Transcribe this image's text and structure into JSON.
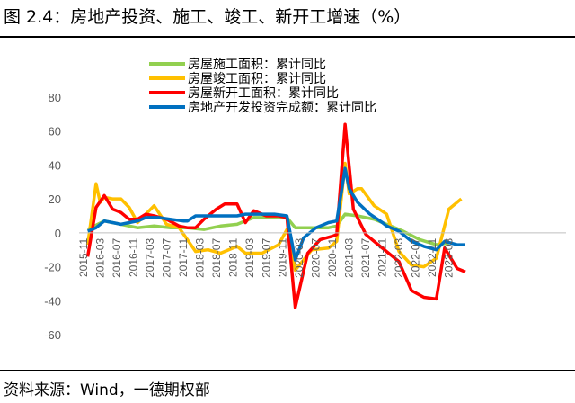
{
  "header": {
    "title": "图 2.4：房地产投资、施工、竣工、新开工增速（%）"
  },
  "footer": {
    "source": "资料来源：Wind，一德期权部"
  },
  "chart_data": {
    "type": "line",
    "title": "房地产投资、施工、竣工、新开工增速（%）",
    "ylim": [
      -60,
      80
    ],
    "yticks": [
      "80",
      "60",
      "40",
      "20",
      "0",
      "-20",
      "-40",
      "-60"
    ],
    "xticks": [
      "2015-11",
      "2016-03",
      "2016-07",
      "2016-11",
      "2017-03",
      "2017-07",
      "2017-11",
      "2018-03",
      "2018-07",
      "2018-11",
      "2019-03",
      "2019-07",
      "2019-11",
      "2020-03",
      "2020-07",
      "2020-11",
      "2021-03",
      "2021-07",
      "2021-11",
      "2022-03",
      "2022-07",
      "2022-11",
      "2023-03"
    ],
    "legend_position": "top-left",
    "grid": false,
    "series": [
      {
        "name": "房屋施工面积：累计同比",
        "color": "#92D050",
        "points": [
          [
            "2015-12",
            2
          ],
          [
            "2016-04",
            7
          ],
          [
            "2016-08",
            5
          ],
          [
            "2016-12",
            3
          ],
          [
            "2017-04",
            4
          ],
          [
            "2017-08",
            3
          ],
          [
            "2017-12",
            3
          ],
          [
            "2018-04",
            2
          ],
          [
            "2018-08",
            4
          ],
          [
            "2018-12",
            5
          ],
          [
            "2019-04",
            9
          ],
          [
            "2019-08",
            9
          ],
          [
            "2019-12",
            9
          ],
          [
            "2020-02",
            3
          ],
          [
            "2020-06",
            3
          ],
          [
            "2020-10",
            3
          ],
          [
            "2020-12",
            4
          ],
          [
            "2021-02",
            11
          ],
          [
            "2021-05",
            10
          ],
          [
            "2021-09",
            8
          ],
          [
            "2021-12",
            5
          ],
          [
            "2022-04",
            1
          ],
          [
            "2022-08",
            -4
          ],
          [
            "2022-12",
            -7
          ],
          [
            "2023-03",
            -6
          ]
        ]
      },
      {
        "name": "房屋竣工面积：累计同比",
        "color": "#FFC000",
        "points": [
          [
            "2015-12",
            -7
          ],
          [
            "2016-02",
            29
          ],
          [
            "2016-03",
            18
          ],
          [
            "2016-04",
            21
          ],
          [
            "2016-06",
            20
          ],
          [
            "2016-08",
            20
          ],
          [
            "2016-10",
            15
          ],
          [
            "2016-12",
            6
          ],
          [
            "2017-04",
            16
          ],
          [
            "2017-07",
            5
          ],
          [
            "2017-10",
            3
          ],
          [
            "2017-12",
            -4
          ],
          [
            "2018-02",
            -11
          ],
          [
            "2018-05",
            -10
          ],
          [
            "2018-08",
            -12
          ],
          [
            "2018-12",
            -8
          ],
          [
            "2019-02",
            -12
          ],
          [
            "2019-06",
            -12
          ],
          [
            "2019-10",
            -7
          ],
          [
            "2019-12",
            2
          ],
          [
            "2020-02",
            -22
          ],
          [
            "2020-06",
            -10
          ],
          [
            "2020-10",
            -9
          ],
          [
            "2020-12",
            -5
          ],
          [
            "2021-02",
            41
          ],
          [
            "2021-03",
            23
          ],
          [
            "2021-05",
            26
          ],
          [
            "2021-06",
            26
          ],
          [
            "2021-09",
            16
          ],
          [
            "2021-12",
            11
          ],
          [
            "2022-03",
            -11
          ],
          [
            "2022-06",
            -19
          ],
          [
            "2022-09",
            -20
          ],
          [
            "2022-12",
            -15
          ],
          [
            "2023-03",
            14
          ],
          [
            "2023-06",
            20
          ]
        ]
      },
      {
        "name": "房屋新开工面积：累计同比",
        "color": "#FF0000",
        "points": [
          [
            "2015-12",
            -14
          ],
          [
            "2016-02",
            15
          ],
          [
            "2016-04",
            22
          ],
          [
            "2016-06",
            14
          ],
          [
            "2016-08",
            12
          ],
          [
            "2016-10",
            8
          ],
          [
            "2016-12",
            8
          ],
          [
            "2017-02",
            11
          ],
          [
            "2017-04",
            10
          ],
          [
            "2017-07",
            8
          ],
          [
            "2017-10",
            4
          ],
          [
            "2017-12",
            3
          ],
          [
            "2018-02",
            3
          ],
          [
            "2018-04",
            8
          ],
          [
            "2018-07",
            14
          ],
          [
            "2018-09",
            17
          ],
          [
            "2018-12",
            17
          ],
          [
            "2019-02",
            6
          ],
          [
            "2019-04",
            13
          ],
          [
            "2019-07",
            10
          ],
          [
            "2019-10",
            10
          ],
          [
            "2019-12",
            9
          ],
          [
            "2020-02",
            -44
          ],
          [
            "2020-05",
            -12
          ],
          [
            "2020-08",
            -4
          ],
          [
            "2020-11",
            -2
          ],
          [
            "2020-12",
            -1
          ],
          [
            "2021-02",
            64
          ],
          [
            "2021-04",
            14
          ],
          [
            "2021-07",
            -1
          ],
          [
            "2021-10",
            -7
          ],
          [
            "2021-12",
            -11
          ],
          [
            "2022-03",
            -17
          ],
          [
            "2022-06",
            -34
          ],
          [
            "2022-09",
            -38
          ],
          [
            "2022-12",
            -39
          ],
          [
            "2023-02",
            -9
          ],
          [
            "2023-05",
            -21
          ],
          [
            "2023-07",
            -23
          ]
        ]
      },
      {
        "name": "房地产开发投资完成额：累计同比",
        "color": "#0070C0",
        "points": [
          [
            "2015-12",
            1
          ],
          [
            "2016-02",
            3
          ],
          [
            "2016-04",
            7
          ],
          [
            "2016-06",
            6
          ],
          [
            "2016-08",
            5
          ],
          [
            "2016-10",
            6
          ],
          [
            "2016-12",
            7
          ],
          [
            "2017-02",
            9
          ],
          [
            "2017-05",
            9
          ],
          [
            "2017-08",
            8
          ],
          [
            "2017-11",
            7
          ],
          [
            "2017-12",
            7
          ],
          [
            "2018-02",
            10
          ],
          [
            "2018-05",
            10
          ],
          [
            "2018-09",
            10
          ],
          [
            "2018-12",
            10
          ],
          [
            "2019-02",
            11
          ],
          [
            "2019-06",
            11
          ],
          [
            "2019-09",
            11
          ],
          [
            "2019-12",
            10
          ],
          [
            "2020-02",
            -16
          ],
          [
            "2020-04",
            -3
          ],
          [
            "2020-07",
            3
          ],
          [
            "2020-10",
            6
          ],
          [
            "2020-12",
            7
          ],
          [
            "2021-02",
            38
          ],
          [
            "2021-03",
            26
          ],
          [
            "2021-05",
            18
          ],
          [
            "2021-08",
            11
          ],
          [
            "2021-11",
            6
          ],
          [
            "2021-12",
            4
          ],
          [
            "2022-03",
            1
          ],
          [
            "2022-06",
            -5
          ],
          [
            "2022-09",
            -8
          ],
          [
            "2022-12",
            -10
          ],
          [
            "2023-02",
            -5
          ],
          [
            "2023-05",
            -7
          ],
          [
            "2023-07",
            -7
          ]
        ]
      }
    ]
  }
}
